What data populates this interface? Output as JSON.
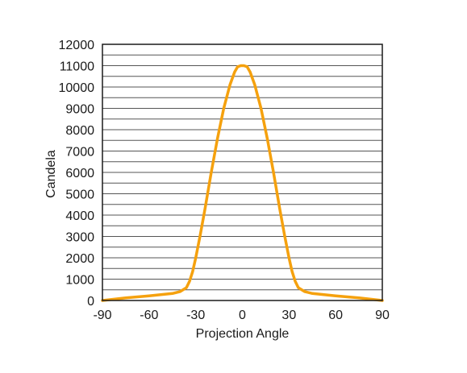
{
  "chart_data": {
    "type": "line",
    "title": "",
    "xlabel": "Projection Angle",
    "ylabel": "Candela",
    "xlim": [
      -90,
      90
    ],
    "ylim": [
      0,
      12000
    ],
    "x_ticks": [
      -90,
      -60,
      -30,
      0,
      30,
      60,
      90
    ],
    "y_ticks": [
      0,
      1000,
      2000,
      3000,
      4000,
      5000,
      6000,
      7000,
      8000,
      9000,
      10000,
      11000,
      12000
    ],
    "minor_y_step": 500,
    "grid": true,
    "legend": "none",
    "series": [
      {
        "color": "#f5a10e",
        "x": [
          -90,
          -75,
          -60,
          -45,
          -40,
          -36,
          -34,
          -32,
          -30,
          -27,
          -24,
          -20,
          -16,
          -12,
          -8,
          -5,
          -3,
          -1,
          0,
          1,
          3,
          5,
          8,
          12,
          16,
          20,
          24,
          27,
          30,
          32,
          34,
          36,
          40,
          45,
          60,
          75,
          90
        ],
        "y": [
          0,
          120,
          220,
          330,
          420,
          600,
          900,
          1350,
          2000,
          3100,
          4300,
          6000,
          7600,
          9000,
          10100,
          10700,
          10950,
          11000,
          11000,
          11000,
          10950,
          10700,
          10100,
          9000,
          7600,
          6000,
          4300,
          3100,
          2000,
          1350,
          900,
          600,
          420,
          330,
          220,
          120,
          0
        ]
      }
    ]
  }
}
